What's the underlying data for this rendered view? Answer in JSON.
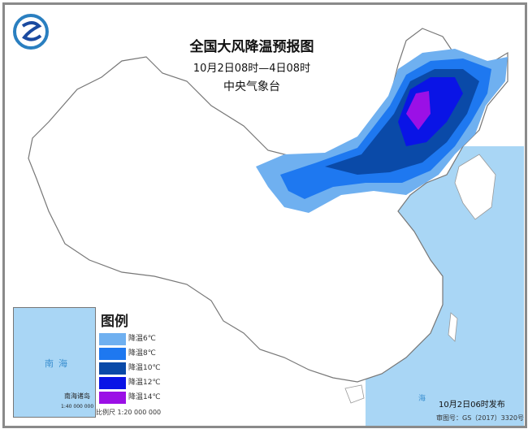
{
  "title": "全国大风降温预报图",
  "period": "10月2日08时—4日08时",
  "issuer": "中央气象台",
  "logo_icon": "cma-logo-icon",
  "legend": {
    "title": "图例",
    "items": [
      {
        "label": "降温6℃",
        "color": "#6fb0f0"
      },
      {
        "label": "降温8℃",
        "color": "#1e78f0"
      },
      {
        "label": "降温10℃",
        "color": "#0a4aa8"
      },
      {
        "label": "降温12℃",
        "color": "#0a14e6"
      },
      {
        "label": "降温14℃",
        "color": "#9b10e6"
      }
    ]
  },
  "scale": "比例尺  1:20 000 000",
  "inset": {
    "sea": "南海",
    "name": "南海诸岛",
    "scale": "1:40 000 000"
  },
  "sea_label": "海",
  "published": "10月2日06时发布",
  "approval": "审图号：GS（2017）3320号",
  "colors": {
    "sea": "#a9d6f5",
    "land": "#ffffff",
    "border": "#8a8a8a"
  }
}
